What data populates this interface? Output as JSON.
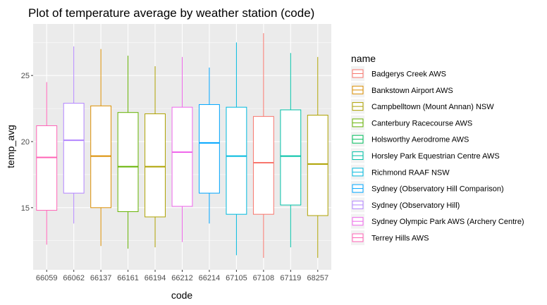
{
  "chart_data": {
    "type": "boxplot",
    "title": "Plot of temperature average by weather station (code)",
    "xlabel": "code",
    "ylabel": "temp_avg",
    "ylim": [
      10.3,
      28.9
    ],
    "yticks": [
      15,
      20,
      25
    ],
    "grid": true,
    "legend": {
      "title": "name",
      "placement": "right",
      "entries": [
        {
          "label": "Badgerys Creek AWS",
          "color": "#F8766D"
        },
        {
          "label": "Bankstown Airport AWS",
          "color": "#DB8E00"
        },
        {
          "label": "Campbelltown (Mount Annan) NSW",
          "color": "#AEA200"
        },
        {
          "label": "Canterbury Racecourse AWS",
          "color": "#64B200"
        },
        {
          "label": "Holsworthy Aerodrome AWS",
          "color": "#00BD5C"
        },
        {
          "label": "Horsley Park Equestrian Centre AWS",
          "color": "#00C1A7"
        },
        {
          "label": "Richmond RAAF NSW",
          "color": "#00BADE"
        },
        {
          "label": "Sydney (Observatory Hill Comparison)",
          "color": "#00A6FF"
        },
        {
          "label": "Sydney (Observatory Hill)",
          "color": "#B385FF"
        },
        {
          "label": "Sydney Olympic Park AWS (Archery Centre)",
          "color": "#EF67EB"
        },
        {
          "label": "Terrey Hills AWS",
          "color": "#FF63B6"
        }
      ]
    },
    "boxes": [
      {
        "code": "66059",
        "color": "#FF63B6",
        "min": 12.2,
        "q1": 14.8,
        "median": 18.8,
        "q3": 21.2,
        "max": 24.5
      },
      {
        "code": "66062",
        "color": "#B385FF",
        "min": 13.8,
        "q1": 16.1,
        "median": 20.1,
        "q3": 22.9,
        "max": 27.2
      },
      {
        "code": "66137",
        "color": "#DB8E00",
        "min": 12.1,
        "q1": 15.0,
        "median": 18.9,
        "q3": 22.7,
        "max": 27.0
      },
      {
        "code": "66161",
        "color": "#64B200",
        "min": 11.9,
        "q1": 14.7,
        "median": 18.1,
        "q3": 22.2,
        "max": 26.5
      },
      {
        "code": "66194",
        "color": "#AEA200",
        "min": 12.0,
        "q1": 14.3,
        "median": 18.1,
        "q3": 22.1,
        "max": 25.7
      },
      {
        "code": "66212",
        "color": "#EF67EB",
        "min": 12.4,
        "q1": 15.1,
        "median": 19.2,
        "q3": 22.6,
        "max": 26.4
      },
      {
        "code": "66214",
        "color": "#00A6FF",
        "min": 13.8,
        "q1": 16.1,
        "median": 19.9,
        "q3": 22.8,
        "max": 25.6
      },
      {
        "code": "67105",
        "color": "#00BADE",
        "min": 11.4,
        "q1": 14.5,
        "median": 18.9,
        "q3": 22.6,
        "max": 27.5
      },
      {
        "code": "67108",
        "color": "#F8766D",
        "min": 11.2,
        "q1": 14.5,
        "median": 18.4,
        "q3": 21.9,
        "max": 28.2
      },
      {
        "code": "67119",
        "color": "#00C1A7",
        "min": 12.0,
        "q1": 15.2,
        "median": 18.9,
        "q3": 22.4,
        "max": 26.7
      },
      {
        "code": "68257",
        "color": "#AEA200",
        "min": 11.2,
        "q1": 14.4,
        "median": 18.3,
        "q3": 22.0,
        "max": 26.4
      }
    ]
  }
}
